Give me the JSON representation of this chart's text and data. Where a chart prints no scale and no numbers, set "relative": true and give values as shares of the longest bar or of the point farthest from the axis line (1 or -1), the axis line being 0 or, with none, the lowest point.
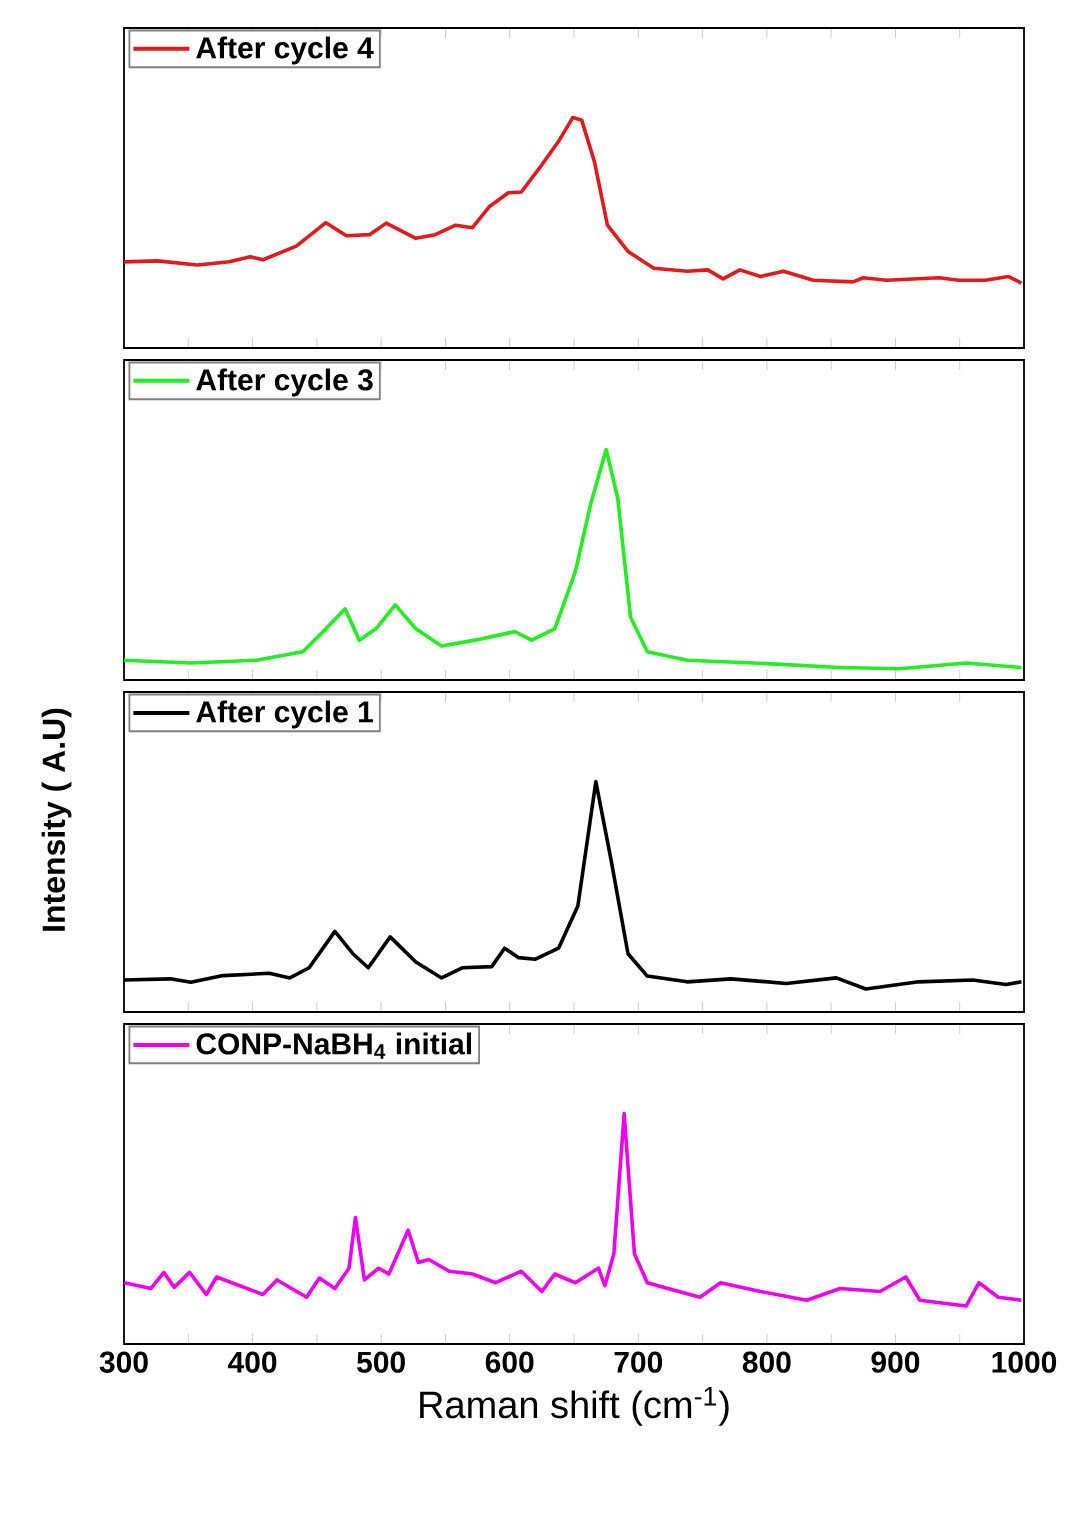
{
  "chart_data": [
    {
      "type": "line",
      "relative": true,
      "legend": "top left",
      "tick_labels": false,
      "xlim": [
        300,
        1000
      ],
      "xticks": [
        300,
        {
          "value": 350,
          "label": null
        },
        400,
        {
          "value": 450,
          "label": null
        },
        500,
        {
          "value": 550,
          "label": null
        },
        600,
        {
          "value": 650,
          "label": null
        },
        700,
        {
          "value": 750,
          "label": null
        },
        800,
        {
          "value": 850,
          "label": null
        },
        900,
        {
          "value": 950,
          "label": null
        },
        1000
      ],
      "x": [
        300,
        326,
        357,
        382,
        398,
        408,
        434,
        457,
        473,
        491,
        504,
        527,
        542,
        558,
        571,
        584,
        599,
        609,
        625,
        638,
        649,
        656,
        666,
        676,
        692,
        712,
        738,
        754,
        766,
        779,
        795,
        813,
        836,
        867,
        875,
        893,
        934,
        949,
        970,
        988,
        998
      ],
      "series": [
        {
          "name": "After cycle 4",
          "color": "#e31a1c",
          "values": [
            0.374,
            0.378,
            0.36,
            0.374,
            0.396,
            0.383,
            0.442,
            0.544,
            0.487,
            0.492,
            0.542,
            0.476,
            0.492,
            0.533,
            0.522,
            0.613,
            0.674,
            0.677,
            0.795,
            0.897,
            1.0,
            0.989,
            0.806,
            0.533,
            0.419,
            0.346,
            0.333,
            0.339,
            0.3,
            0.339,
            0.31,
            0.333,
            0.294,
            0.287,
            0.305,
            0.294,
            0.305,
            0.294,
            0.294,
            0.31,
            0.282
          ]
        }
      ]
    },
    {
      "type": "line",
      "relative": true,
      "legend": "top left",
      "tick_labels": false,
      "xlim": [
        300,
        1000
      ],
      "xticks": [
        300,
        {
          "value": 350,
          "label": null
        },
        400,
        {
          "value": 450,
          "label": null
        },
        500,
        {
          "value": 550,
          "label": null
        },
        600,
        {
          "value": 650,
          "label": null
        },
        700,
        {
          "value": 750,
          "label": null
        },
        800,
        {
          "value": 850,
          "label": null
        },
        900,
        {
          "value": 950,
          "label": null
        },
        1000
      ],
      "x": [
        300,
        352,
        403,
        439,
        457,
        472,
        483,
        496,
        511,
        527,
        547,
        573,
        594,
        604,
        617,
        635,
        651,
        663,
        675,
        684,
        694,
        707,
        738,
        790,
        857,
        903,
        955,
        998
      ],
      "series": [
        {
          "name": "After cycle 3",
          "color": "#22ee22",
          "values": [
            0.086,
            0.074,
            0.086,
            0.123,
            0.222,
            0.309,
            0.173,
            0.222,
            0.326,
            0.222,
            0.148,
            0.173,
            0.198,
            0.21,
            0.173,
            0.222,
            0.469,
            0.765,
            1.0,
            0.79,
            0.272,
            0.123,
            0.086,
            0.074,
            0.054,
            0.049,
            0.074,
            0.054
          ]
        }
      ]
    },
    {
      "type": "line",
      "relative": true,
      "legend": "top left",
      "tick_labels": false,
      "xlim": [
        300,
        1000
      ],
      "xticks": [
        300,
        {
          "value": 350,
          "label": null
        },
        400,
        {
          "value": 450,
          "label": null
        },
        500,
        {
          "value": 550,
          "label": null
        },
        600,
        {
          "value": 650,
          "label": null
        },
        700,
        {
          "value": 750,
          "label": null
        },
        800,
        {
          "value": 850,
          "label": null
        },
        900,
        {
          "value": 950,
          "label": null
        },
        1000
      ],
      "ylabel": "Intensity ( A.U)",
      "x": [
        300,
        336,
        352,
        377,
        413,
        429,
        444,
        464,
        478,
        490,
        507,
        527,
        547,
        563,
        586,
        596,
        607,
        620,
        638,
        653,
        667,
        679,
        692,
        707,
        738,
        772,
        815,
        854,
        877,
        918,
        960,
        986,
        998
      ],
      "series": [
        {
          "name": "After cycle 1",
          "color": "#000000",
          "values": [
            0.139,
            0.144,
            0.129,
            0.158,
            0.168,
            0.148,
            0.192,
            0.35,
            0.253,
            0.192,
            0.326,
            0.217,
            0.148,
            0.192,
            0.197,
            0.277,
            0.236,
            0.229,
            0.277,
            0.46,
            1.0,
            0.655,
            0.253,
            0.156,
            0.131,
            0.144,
            0.124,
            0.148,
            0.1,
            0.131,
            0.139,
            0.119,
            0.131
          ]
        }
      ]
    },
    {
      "type": "line",
      "relative": true,
      "legend": "top left",
      "tick_labels": "x",
      "xlim": [
        300,
        1000
      ],
      "xlabel": "Raman shift (cm$^{-1}$)",
      "xticks": [
        300,
        {
          "value": 350,
          "label": null
        },
        400,
        {
          "value": 450,
          "label": null
        },
        500,
        {
          "value": 550,
          "label": null
        },
        600,
        {
          "value": 650,
          "label": null
        },
        700,
        {
          "value": 750,
          "label": null
        },
        800,
        {
          "value": 850,
          "label": null
        },
        900,
        {
          "value": 950,
          "label": null
        },
        1000
      ],
      "x": [
        300,
        321,
        331,
        339,
        351,
        364,
        372,
        408,
        419,
        442,
        452,
        464,
        475,
        480,
        487,
        498,
        506,
        521,
        529,
        537,
        553,
        571,
        589,
        609,
        625,
        635,
        651,
        669,
        674,
        681,
        689,
        697,
        707,
        723,
        748,
        764,
        795,
        831,
        857,
        888,
        908,
        919,
        955,
        965,
        980,
        998
      ],
      "series": [
        {
          "name": "CONP-NaBH$_{4}$ initial",
          "color": "#ee00ee",
          "values": [
            0.266,
            0.241,
            0.311,
            0.246,
            0.311,
            0.215,
            0.291,
            0.215,
            0.278,
            0.203,
            0.286,
            0.241,
            0.329,
            0.549,
            0.278,
            0.329,
            0.304,
            0.494,
            0.354,
            0.367,
            0.316,
            0.304,
            0.266,
            0.316,
            0.228,
            0.304,
            0.266,
            0.329,
            0.253,
            0.392,
            1.0,
            0.392,
            0.266,
            0.241,
            0.203,
            0.266,
            0.228,
            0.19,
            0.241,
            0.228,
            0.291,
            0.19,
            0.165,
            0.266,
            0.203,
            0.19
          ]
        }
      ]
    }
  ]
}
